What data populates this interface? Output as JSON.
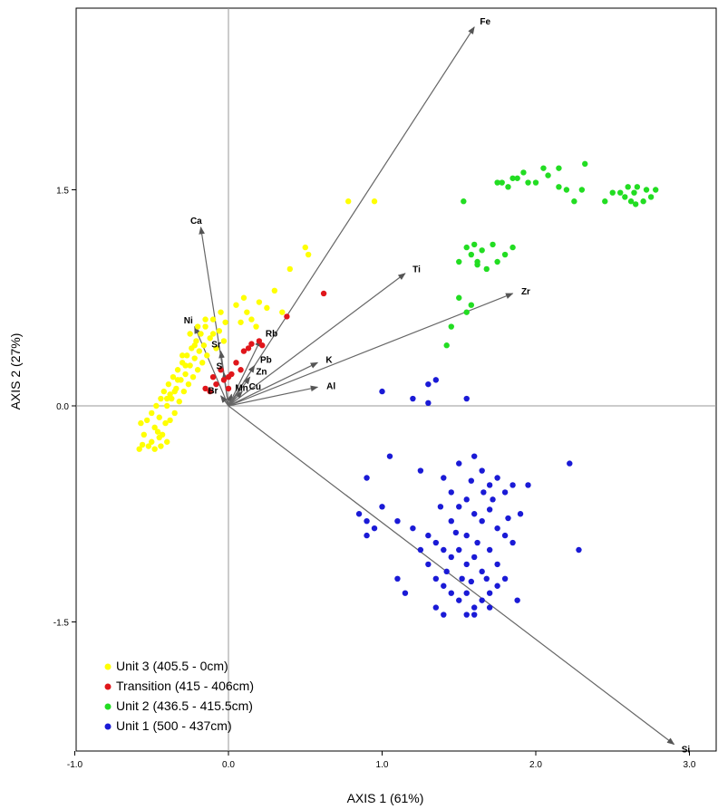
{
  "chart_data": {
    "type": "scatter",
    "subtype": "PCA biplot",
    "xlabel": "AXIS 1 (61%)",
    "ylabel": "AXIS 2 (27%)",
    "xlim": [
      -1.0,
      3.0
    ],
    "ylim": [
      -2.4,
      2.7
    ],
    "x_ticks": [
      -1.0,
      0.0,
      1.0,
      2.0,
      3.0
    ],
    "x_tick_labels": [
      "-1.0",
      "0.0",
      "1.0",
      "2.0",
      "3.0"
    ],
    "y_ticks": [
      -1.5,
      0.0,
      1.5
    ],
    "y_tick_labels": [
      "-1.5",
      "0.0",
      "1.5"
    ],
    "grid": false,
    "zero_lines": true,
    "legend_position": "bottom-left",
    "series": [
      {
        "name": "Unit 3 (405.5 - 0cm)",
        "color": "#ffff00",
        "points": [
          [
            -0.58,
            -0.3
          ],
          [
            -0.56,
            -0.27
          ],
          [
            -0.55,
            -0.2
          ],
          [
            -0.57,
            -0.12
          ],
          [
            -0.52,
            -0.28
          ],
          [
            -0.53,
            -0.1
          ],
          [
            -0.5,
            -0.25
          ],
          [
            -0.5,
            -0.05
          ],
          [
            -0.48,
            -0.3
          ],
          [
            -0.48,
            -0.15
          ],
          [
            -0.47,
            0.0
          ],
          [
            -0.45,
            -0.22
          ],
          [
            -0.45,
            -0.08
          ],
          [
            -0.44,
            0.05
          ],
          [
            -0.43,
            -0.2
          ],
          [
            -0.42,
            0.1
          ],
          [
            -0.41,
            -0.12
          ],
          [
            -0.4,
            0.0
          ],
          [
            -0.39,
            0.15
          ],
          [
            -0.38,
            -0.1
          ],
          [
            -0.37,
            0.05
          ],
          [
            -0.36,
            0.2
          ],
          [
            -0.35,
            -0.05
          ],
          [
            -0.34,
            0.12
          ],
          [
            -0.33,
            0.25
          ],
          [
            -0.32,
            0.03
          ],
          [
            -0.31,
            0.18
          ],
          [
            -0.3,
            0.3
          ],
          [
            -0.29,
            0.1
          ],
          [
            -0.28,
            0.22
          ],
          [
            -0.27,
            0.35
          ],
          [
            -0.26,
            0.15
          ],
          [
            -0.25,
            0.28
          ],
          [
            -0.24,
            0.4
          ],
          [
            -0.23,
            0.2
          ],
          [
            -0.22,
            0.33
          ],
          [
            -0.21,
            0.45
          ],
          [
            -0.2,
            0.25
          ],
          [
            -0.19,
            0.38
          ],
          [
            -0.18,
            0.5
          ],
          [
            -0.17,
            0.3
          ],
          [
            -0.16,
            0.42
          ],
          [
            -0.15,
            0.55
          ],
          [
            -0.14,
            0.35
          ],
          [
            -0.12,
            0.47
          ],
          [
            -0.1,
            0.6
          ],
          [
            -0.08,
            0.4
          ],
          [
            -0.06,
            0.52
          ],
          [
            -0.05,
            0.65
          ],
          [
            -0.03,
            0.45
          ],
          [
            -0.02,
            0.58
          ],
          [
            -0.2,
            0.55
          ],
          [
            -0.25,
            0.5
          ],
          [
            -0.1,
            0.5
          ],
          [
            -0.3,
            0.35
          ],
          [
            -0.44,
            -0.28
          ],
          [
            -0.46,
            -0.18
          ],
          [
            -0.4,
            -0.25
          ],
          [
            -0.38,
            0.08
          ],
          [
            -0.35,
            0.1
          ],
          [
            0.05,
            0.7
          ],
          [
            0.1,
            0.75
          ],
          [
            0.15,
            0.6
          ],
          [
            0.2,
            0.72
          ],
          [
            0.25,
            0.68
          ],
          [
            0.3,
            0.8
          ],
          [
            0.35,
            0.65
          ],
          [
            0.4,
            0.95
          ],
          [
            0.5,
            1.1
          ],
          [
            0.52,
            1.05
          ],
          [
            0.78,
            1.42
          ],
          [
            0.95,
            1.42
          ],
          [
            0.12,
            0.65
          ],
          [
            0.18,
            0.55
          ],
          [
            0.08,
            0.58
          ],
          [
            -0.15,
            0.6
          ],
          [
            -0.22,
            0.42
          ],
          [
            -0.28,
            0.28
          ],
          [
            -0.33,
            0.18
          ],
          [
            -0.4,
            0.05
          ]
        ]
      },
      {
        "name": "Transition (415 - 406cm)",
        "color": "#e0161b",
        "points": [
          [
            -0.15,
            0.12
          ],
          [
            -0.1,
            0.2
          ],
          [
            -0.08,
            0.15
          ],
          [
            -0.05,
            0.25
          ],
          [
            0.0,
            0.12
          ],
          [
            0.02,
            0.22
          ],
          [
            0.05,
            0.3
          ],
          [
            0.08,
            0.25
          ],
          [
            0.1,
            0.38
          ],
          [
            0.13,
            0.4
          ],
          [
            0.15,
            0.43
          ],
          [
            0.2,
            0.45
          ],
          [
            0.22,
            0.42
          ],
          [
            -0.12,
            0.1
          ],
          [
            0.38,
            0.62
          ],
          [
            0.62,
            0.78
          ],
          [
            0.0,
            0.2
          ],
          [
            -0.03,
            0.18
          ]
        ]
      },
      {
        "name": "Unit 2 (436.5 - 415.5cm)",
        "color": "#22dd22",
        "points": [
          [
            1.53,
            1.42
          ],
          [
            1.75,
            1.55
          ],
          [
            1.78,
            1.55
          ],
          [
            1.82,
            1.52
          ],
          [
            1.85,
            1.58
          ],
          [
            1.88,
            1.58
          ],
          [
            1.92,
            1.62
          ],
          [
            2.0,
            1.55
          ],
          [
            2.05,
            1.65
          ],
          [
            2.08,
            1.6
          ],
          [
            2.15,
            1.52
          ],
          [
            2.15,
            1.65
          ],
          [
            2.2,
            1.5
          ],
          [
            2.25,
            1.42
          ],
          [
            2.32,
            1.68
          ],
          [
            2.5,
            1.48
          ],
          [
            2.55,
            1.48
          ],
          [
            2.58,
            1.45
          ],
          [
            2.62,
            1.42
          ],
          [
            2.65,
            1.4
          ],
          [
            2.66,
            1.52
          ],
          [
            2.7,
            1.42
          ],
          [
            2.72,
            1.5
          ],
          [
            2.75,
            1.45
          ],
          [
            2.78,
            1.5
          ],
          [
            2.6,
            1.52
          ],
          [
            2.64,
            1.48
          ],
          [
            1.95,
            1.55
          ],
          [
            2.45,
            1.42
          ],
          [
            2.3,
            1.5
          ],
          [
            1.55,
            1.1
          ],
          [
            1.58,
            1.05
          ],
          [
            1.6,
            1.12
          ],
          [
            1.62,
            0.98
          ],
          [
            1.65,
            1.08
          ],
          [
            1.68,
            0.95
          ],
          [
            1.72,
            1.12
          ],
          [
            1.75,
            1.0
          ],
          [
            1.8,
            1.05
          ],
          [
            1.85,
            1.1
          ],
          [
            1.5,
            0.75
          ],
          [
            1.55,
            0.65
          ],
          [
            1.45,
            0.55
          ],
          [
            1.42,
            0.42
          ],
          [
            1.58,
            0.7
          ],
          [
            1.62,
            1.0
          ],
          [
            1.5,
            1.0
          ]
        ]
      },
      {
        "name": "Unit 1 (500 - 437cm)",
        "color": "#1a1ad6",
        "points": [
          [
            1.0,
            0.1
          ],
          [
            1.2,
            0.05
          ],
          [
            1.3,
            0.15
          ],
          [
            1.35,
            0.18
          ],
          [
            1.55,
            0.05
          ],
          [
            1.3,
            0.02
          ],
          [
            0.9,
            -0.5
          ],
          [
            1.05,
            -0.35
          ],
          [
            1.25,
            -0.45
          ],
          [
            1.4,
            -0.5
          ],
          [
            1.5,
            -0.4
          ],
          [
            1.6,
            -0.35
          ],
          [
            1.65,
            -0.45
          ],
          [
            1.7,
            -0.55
          ],
          [
            1.75,
            -0.5
          ],
          [
            1.8,
            -0.6
          ],
          [
            1.85,
            -0.55
          ],
          [
            1.45,
            -0.6
          ],
          [
            1.5,
            -0.7
          ],
          [
            1.55,
            -0.65
          ],
          [
            1.6,
            -0.75
          ],
          [
            1.65,
            -0.8
          ],
          [
            1.7,
            -0.72
          ],
          [
            1.75,
            -0.85
          ],
          [
            1.8,
            -0.9
          ],
          [
            1.85,
            -0.95
          ],
          [
            0.85,
            -0.75
          ],
          [
            0.9,
            -0.8
          ],
          [
            0.95,
            -0.85
          ],
          [
            1.0,
            -0.7
          ],
          [
            1.1,
            -0.8
          ],
          [
            1.2,
            -0.85
          ],
          [
            1.3,
            -0.9
          ],
          [
            1.35,
            -0.95
          ],
          [
            1.4,
            -1.0
          ],
          [
            1.45,
            -1.05
          ],
          [
            1.5,
            -1.0
          ],
          [
            1.55,
            -1.1
          ],
          [
            1.6,
            -1.05
          ],
          [
            1.65,
            -1.15
          ],
          [
            1.7,
            -1.0
          ],
          [
            1.75,
            -1.1
          ],
          [
            1.3,
            -1.1
          ],
          [
            1.35,
            -1.2
          ],
          [
            1.4,
            -1.25
          ],
          [
            1.45,
            -1.3
          ],
          [
            1.5,
            -1.35
          ],
          [
            1.55,
            -1.3
          ],
          [
            1.6,
            -1.4
          ],
          [
            1.65,
            -1.35
          ],
          [
            1.7,
            -1.3
          ],
          [
            1.75,
            -1.25
          ],
          [
            1.8,
            -1.2
          ],
          [
            1.35,
            -1.4
          ],
          [
            1.4,
            -1.45
          ],
          [
            1.6,
            -1.45
          ],
          [
            1.7,
            -1.4
          ],
          [
            1.55,
            -1.45
          ],
          [
            1.1,
            -1.2
          ],
          [
            1.15,
            -1.3
          ],
          [
            2.22,
            -0.4
          ],
          [
            2.28,
            -1.0
          ],
          [
            1.88,
            -1.35
          ],
          [
            0.9,
            -0.9
          ],
          [
            1.95,
            -0.55
          ],
          [
            1.9,
            -0.75
          ],
          [
            1.45,
            -0.8
          ],
          [
            1.25,
            -1.0
          ],
          [
            1.55,
            -0.9
          ],
          [
            1.62,
            -0.95
          ],
          [
            1.68,
            -1.2
          ],
          [
            1.42,
            -1.15
          ],
          [
            1.52,
            -1.2
          ],
          [
            1.58,
            -0.52
          ],
          [
            1.72,
            -0.65
          ],
          [
            1.82,
            -0.78
          ],
          [
            1.38,
            -0.7
          ],
          [
            1.48,
            -0.88
          ],
          [
            1.58,
            -1.22
          ],
          [
            1.66,
            -0.6
          ]
        ]
      }
    ],
    "vectors": [
      {
        "label": "Fe",
        "x": 1.6,
        "y": 2.63
      },
      {
        "label": "Zr",
        "x": 1.85,
        "y": 0.78
      },
      {
        "label": "Ti",
        "x": 1.15,
        "y": 0.92
      },
      {
        "label": "K",
        "x": 0.58,
        "y": 0.3
      },
      {
        "label": "Al",
        "x": 0.58,
        "y": 0.13
      },
      {
        "label": "Ca",
        "x": -0.18,
        "y": 1.24
      },
      {
        "label": "Ni",
        "x": -0.22,
        "y": 0.55
      },
      {
        "label": "Sr",
        "x": -0.05,
        "y": 0.38
      },
      {
        "label": "S",
        "x": -0.03,
        "y": 0.23
      },
      {
        "label": "Br",
        "x": -0.05,
        "y": 0.07
      },
      {
        "label": "Mn",
        "x": 0.02,
        "y": 0.08
      },
      {
        "label": "Cu",
        "x": 0.09,
        "y": 0.1
      },
      {
        "label": "Zn",
        "x": 0.14,
        "y": 0.2
      },
      {
        "label": "Pb",
        "x": 0.17,
        "y": 0.28
      },
      {
        "label": "Rb",
        "x": 0.21,
        "y": 0.46
      },
      {
        "label": "Si",
        "x": 2.9,
        "y": -2.35
      }
    ]
  }
}
